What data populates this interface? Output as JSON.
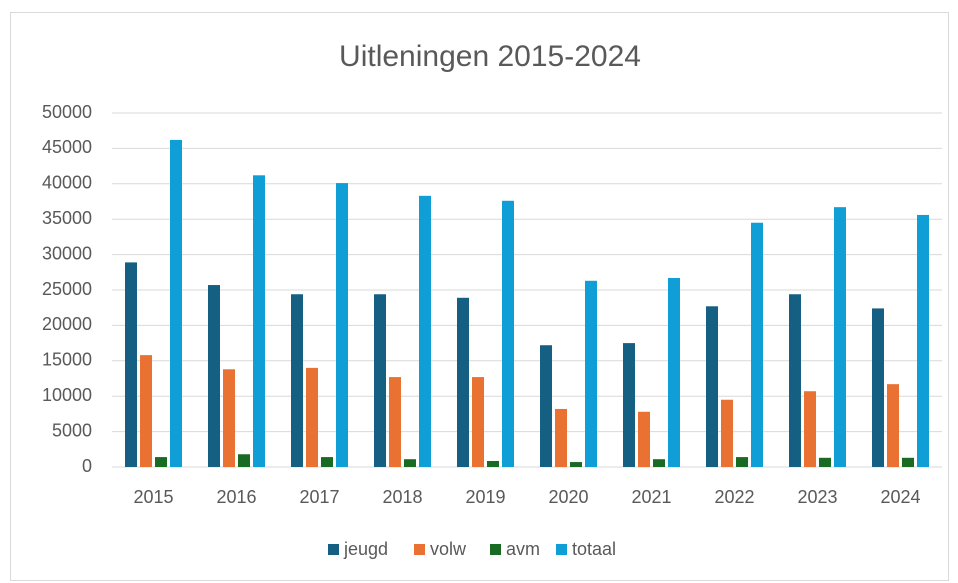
{
  "chart_data": {
    "type": "bar",
    "title": "Uitleningen 2015-2024",
    "categories": [
      "2015",
      "2016",
      "2017",
      "2018",
      "2019",
      "2020",
      "2021",
      "2022",
      "2023",
      "2024"
    ],
    "series": [
      {
        "name": "jeugd",
        "color": "#156082",
        "values": [
          28900,
          25700,
          24400,
          24400,
          23900,
          17200,
          17500,
          22700,
          24400,
          22400
        ]
      },
      {
        "name": "volw",
        "color": "#e97132",
        "values": [
          15800,
          13800,
          14000,
          12700,
          12700,
          8200,
          7800,
          9500,
          10700,
          11700
        ]
      },
      {
        "name": "avm",
        "color": "#196b24",
        "values": [
          1400,
          1800,
          1400,
          1100,
          850,
          700,
          1100,
          1400,
          1300,
          1300
        ]
      },
      {
        "name": "totaal",
        "color": "#0f9ed5",
        "values": [
          46200,
          41200,
          40100,
          38300,
          37600,
          26300,
          26700,
          34500,
          36700,
          35600
        ]
      }
    ],
    "ylim": [
      0,
      50000
    ],
    "yticks": [
      0,
      5000,
      10000,
      15000,
      20000,
      25000,
      30000,
      35000,
      40000,
      45000,
      50000
    ],
    "grid": true,
    "legend": "bottom"
  }
}
